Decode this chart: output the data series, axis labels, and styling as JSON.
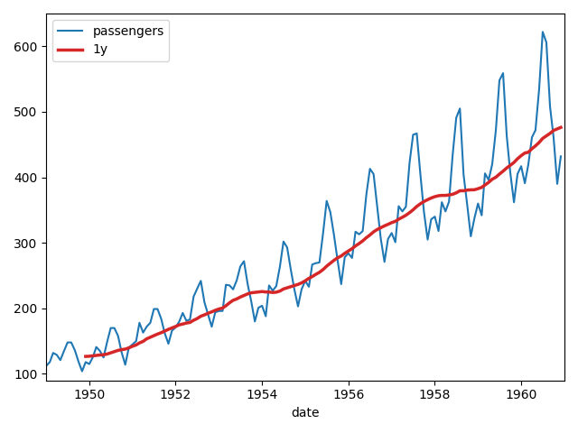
{
  "passengers": [
    112,
    118,
    132,
    129,
    121,
    135,
    148,
    148,
    136,
    119,
    104,
    118,
    115,
    126,
    141,
    135,
    125,
    149,
    170,
    170,
    158,
    133,
    114,
    140,
    145,
    150,
    178,
    163,
    172,
    178,
    199,
    199,
    184,
    162,
    146,
    166,
    171,
    180,
    193,
    181,
    183,
    218,
    230,
    242,
    209,
    191,
    172,
    194,
    196,
    196,
    236,
    235,
    229,
    243,
    264,
    272,
    237,
    211,
    180,
    201,
    204,
    188,
    235,
    227,
    234,
    264,
    302,
    293,
    259,
    229,
    203,
    229,
    242,
    233,
    267,
    269,
    270,
    315,
    364,
    347,
    312,
    274,
    237,
    278,
    284,
    277,
    317,
    313,
    318,
    374,
    413,
    405,
    355,
    306,
    271,
    306,
    315,
    301,
    356,
    348,
    355,
    422,
    465,
    467,
    404,
    347,
    305,
    336,
    340,
    318,
    362,
    348,
    363,
    435,
    491,
    505,
    404,
    359,
    310,
    337,
    360,
    342,
    406,
    396,
    420,
    472,
    548,
    559,
    463,
    407,
    362,
    405,
    417,
    391,
    419,
    461,
    472,
    535,
    622,
    606,
    508,
    461,
    390,
    432
  ],
  "start_year": 1949,
  "start_month": 1,
  "rolling_window": 12,
  "line_color": "#1f77b4",
  "rolling_color": "#d62728",
  "line_label": "passengers",
  "rolling_label": "1y",
  "xlabel": "date",
  "ylabel": "",
  "title": "",
  "legend_loc": "upper left",
  "figsize": [
    6.4,
    4.8
  ],
  "dpi": 100,
  "xtick_every_years": 2,
  "ylim": [
    90,
    650
  ]
}
